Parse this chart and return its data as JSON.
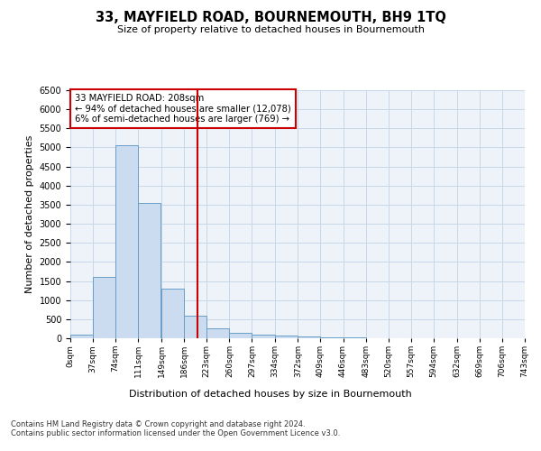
{
  "title": "33, MAYFIELD ROAD, BOURNEMOUTH, BH9 1TQ",
  "subtitle": "Size of property relative to detached houses in Bournemouth",
  "xlabel": "Distribution of detached houses by size in Bournemouth",
  "ylabel": "Number of detached properties",
  "property_label": "33 MAYFIELD ROAD: 208sqm",
  "pct_smaller": 94,
  "count_smaller": 12078,
  "pct_larger": 6,
  "count_larger": 769,
  "bin_edges": [
    0,
    37,
    74,
    111,
    149,
    186,
    223,
    260,
    297,
    334,
    372,
    409,
    446,
    483,
    520,
    557,
    594,
    632,
    669,
    706,
    743
  ],
  "bin_labels": [
    "0sqm",
    "37sqm",
    "74sqm",
    "111sqm",
    "149sqm",
    "186sqm",
    "223sqm",
    "260sqm",
    "297sqm",
    "334sqm",
    "372sqm",
    "409sqm",
    "446sqm",
    "483sqm",
    "520sqm",
    "557sqm",
    "594sqm",
    "632sqm",
    "669sqm",
    "706sqm",
    "743sqm"
  ],
  "counts": [
    100,
    1600,
    5050,
    3550,
    1300,
    600,
    270,
    150,
    100,
    60,
    50,
    30,
    20,
    10,
    5,
    3,
    2,
    1,
    1,
    0
  ],
  "bar_color": "#ccdcf0",
  "bar_edge_color": "#6a9ec7",
  "vline_color": "#cc0000",
  "vline_x": 208,
  "annotation_box_color": "#cc0000",
  "grid_color": "#c8d8e8",
  "bg_color": "#eef3f9",
  "ylim": [
    0,
    6500
  ],
  "yticks": [
    0,
    500,
    1000,
    1500,
    2000,
    2500,
    3000,
    3500,
    4000,
    4500,
    5000,
    5500,
    6000,
    6500
  ],
  "footer1": "Contains HM Land Registry data © Crown copyright and database right 2024.",
  "footer2": "Contains public sector information licensed under the Open Government Licence v3.0."
}
